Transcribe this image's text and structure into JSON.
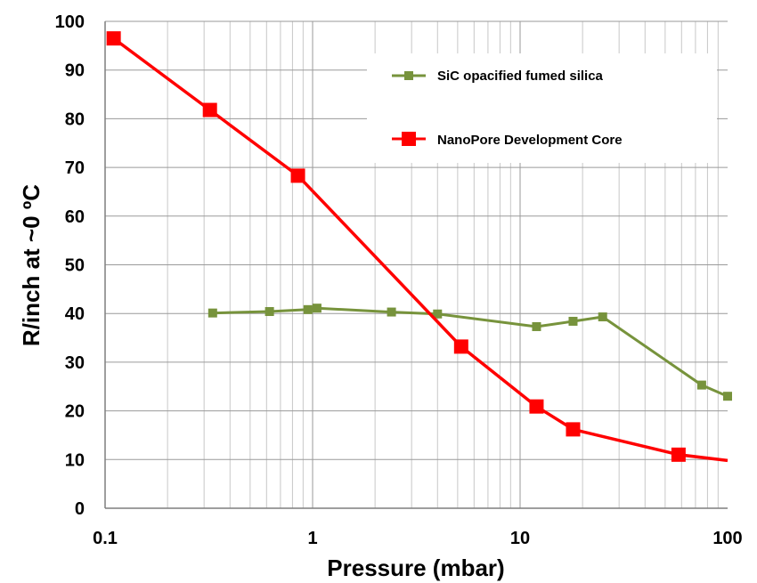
{
  "chart_data": {
    "type": "line",
    "xlabel": "Pressure (mbar)",
    "ylabel": "R/inch at ~0 ºC",
    "x_scale": "log",
    "xlim": [
      0.1,
      100
    ],
    "ylim": [
      0,
      100
    ],
    "x_ticks": [
      "0.1",
      "1",
      "10",
      "100"
    ],
    "y_ticks": [
      "0",
      "10",
      "20",
      "30",
      "40",
      "50",
      "60",
      "70",
      "80",
      "90",
      "100"
    ],
    "grid": true,
    "legend_position": "top-right",
    "series": [
      {
        "name": "SiC opacified fumed silica",
        "color": "#77933c",
        "marker": "square-small",
        "x": [
          0.33,
          0.62,
          0.95,
          1.05,
          2.4,
          4.0,
          12.0,
          18.0,
          25.0,
          75.0,
          100.0
        ],
        "y": [
          40.1,
          40.4,
          40.8,
          41.1,
          40.3,
          39.9,
          37.3,
          38.4,
          39.3,
          25.3,
          23.0
        ]
      },
      {
        "name": "NanoPore Development Core",
        "color": "#ff0000",
        "marker": "square-large",
        "x": [
          0.11,
          0.32,
          0.85,
          5.2,
          12.0,
          18.0,
          58.0,
          100.0
        ],
        "y": [
          96.5,
          81.8,
          68.3,
          33.2,
          20.9,
          16.2,
          11.0,
          9.8
        ]
      }
    ]
  }
}
